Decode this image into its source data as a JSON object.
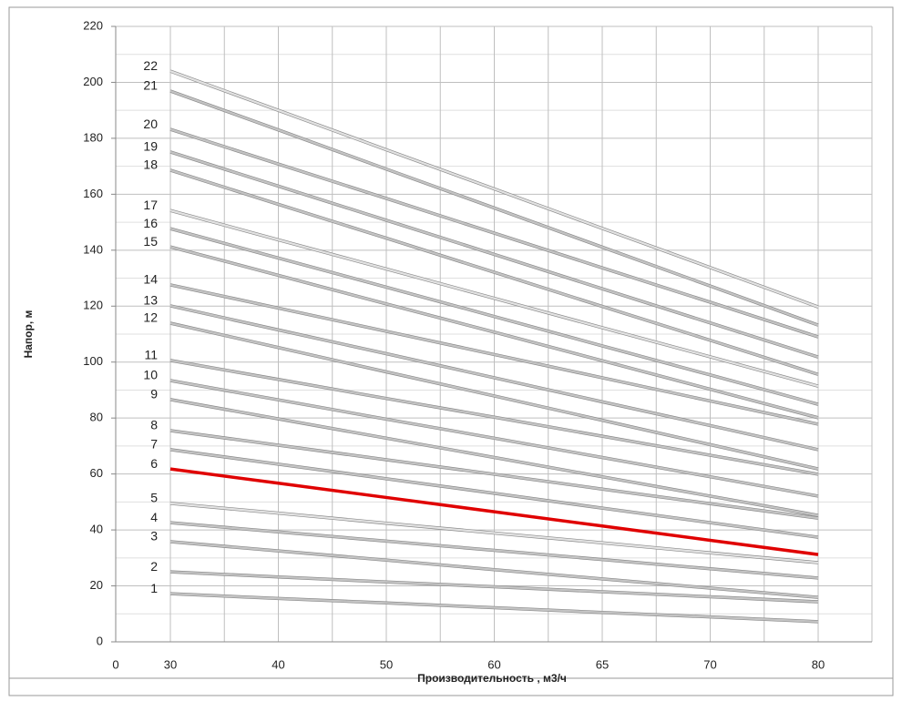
{
  "chart_data": {
    "type": "line",
    "x_label": "Производительность , м3/ч",
    "y_label": "Напор, м",
    "categories": [
      0,
      30,
      40,
      50,
      60,
      65,
      70,
      80
    ],
    "ylim": [
      0,
      220
    ],
    "yticks": [
      0,
      20,
      40,
      60,
      80,
      100,
      120,
      140,
      160,
      180,
      200,
      220
    ],
    "grid": true,
    "series": [
      {
        "name": "1",
        "color": "#c4c4c4",
        "values": [
          null,
          17.2,
          15.5,
          13.9,
          12.2,
          10.5,
          8.9,
          7.2
        ]
      },
      {
        "name": "2",
        "color": "#c4c4c4",
        "values": [
          null,
          25.0,
          23.2,
          21.4,
          19.7,
          17.9,
          16.1,
          14.3
        ]
      },
      {
        "name": "3",
        "color": "#c4c4c4",
        "values": [
          null,
          35.8,
          32.5,
          29.2,
          25.8,
          22.5,
          19.2,
          15.9
        ]
      },
      {
        "name": "4",
        "color": "#c4c4c4",
        "values": [
          null,
          42.6,
          39.3,
          36.0,
          32.7,
          29.4,
          26.1,
          22.8
        ]
      },
      {
        "name": "5",
        "color": "#e2e2e2",
        "values": [
          null,
          49.5,
          46.0,
          42.4,
          38.9,
          35.4,
          31.8,
          28.3
        ]
      },
      {
        "name": "6",
        "color": "#e00000",
        "values": [
          null,
          61.8,
          56.7,
          51.6,
          46.5,
          41.4,
          36.3,
          31.2
        ]
      },
      {
        "name": "7",
        "color": "#c4c4c4",
        "values": [
          null,
          68.7,
          63.5,
          58.3,
          53.1,
          47.8,
          42.6,
          37.4
        ]
      },
      {
        "name": "8",
        "color": "#c4c4c4",
        "values": [
          null,
          75.5,
          70.3,
          65.1,
          59.9,
          54.6,
          49.4,
          44.2
        ]
      },
      {
        "name": "9",
        "color": "#c4c4c4",
        "values": [
          null,
          86.6,
          79.7,
          72.8,
          65.9,
          59.0,
          52.1,
          45.2
        ]
      },
      {
        "name": "10",
        "color": "#c4c4c4",
        "values": [
          null,
          93.4,
          86.5,
          79.6,
          72.8,
          65.9,
          59.0,
          52.1
        ]
      },
      {
        "name": "11",
        "color": "#c4c4c4",
        "values": [
          null,
          100.6,
          93.8,
          87.0,
          80.3,
          73.5,
          66.7,
          59.9
        ]
      },
      {
        "name": "12",
        "color": "#c4c4c4",
        "values": [
          null,
          113.9,
          105.2,
          96.5,
          87.9,
          79.2,
          70.5,
          61.8
        ]
      },
      {
        "name": "13",
        "color": "#c4c4c4",
        "values": [
          null,
          120.1,
          111.5,
          103.0,
          94.4,
          85.8,
          77.3,
          68.7
        ]
      },
      {
        "name": "14",
        "color": "#c4c4c4",
        "values": [
          null,
          127.6,
          119.3,
          111.0,
          102.7,
          94.4,
          86.1,
          77.8
        ]
      },
      {
        "name": "15",
        "color": "#c4c4c4",
        "values": [
          null,
          141.2,
          131.0,
          120.8,
          110.7,
          100.5,
          90.3,
          80.1
        ]
      },
      {
        "name": "16",
        "color": "#c4c4c4",
        "values": [
          null,
          147.7,
          137.2,
          126.8,
          116.3,
          105.8,
          95.4,
          84.9
        ]
      },
      {
        "name": "17",
        "color": "#e2e2e2",
        "values": [
          null,
          154.2,
          143.7,
          133.3,
          122.8,
          112.3,
          101.9,
          91.4
        ]
      },
      {
        "name": "18",
        "color": "#c4c4c4",
        "values": [
          null,
          168.6,
          156.4,
          144.3,
          132.1,
          119.9,
          107.8,
          95.6
        ]
      },
      {
        "name": "19",
        "color": "#c4c4c4",
        "values": [
          null,
          175.1,
          162.9,
          150.7,
          138.5,
          126.2,
          114.0,
          101.8
        ]
      },
      {
        "name": "20",
        "color": "#c4c4c4",
        "values": [
          null,
          183.2,
          170.8,
          158.5,
          146.1,
          133.7,
          121.4,
          109.0
        ]
      },
      {
        "name": "21",
        "color": "#c4c4c4",
        "values": [
          null,
          196.9,
          183.0,
          169.0,
          155.1,
          141.1,
          127.2,
          113.2
        ]
      },
      {
        "name": "22",
        "color": "#e2e2e2",
        "values": [
          null,
          204.0,
          190.0,
          175.9,
          161.9,
          147.8,
          133.8,
          119.7
        ]
      }
    ]
  }
}
